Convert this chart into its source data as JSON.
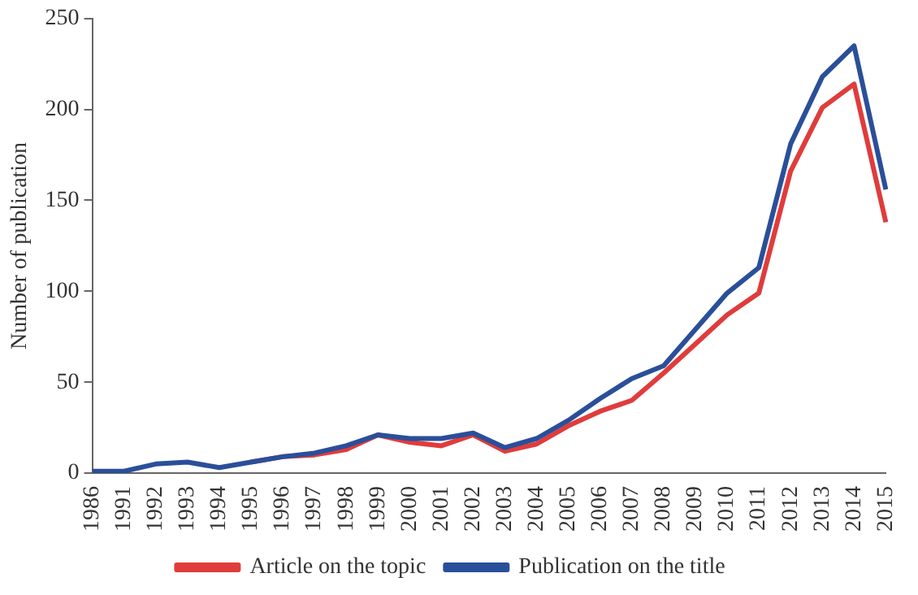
{
  "chart_data": {
    "type": "line",
    "ylabel": "Number of publication",
    "categories": [
      "1986",
      "1991",
      "1992",
      "1993",
      "1994",
      "1995",
      "1996",
      "1997",
      "1998",
      "1999",
      "2000",
      "2001",
      "2002",
      "2003",
      "2004",
      "2005",
      "2006",
      "2007",
      "2008",
      "2009",
      "2010",
      "2011",
      "2012",
      "2013",
      "2014",
      "2015"
    ],
    "series": [
      {
        "name": "Article on the topic",
        "color": "#e03c3c",
        "values": [
          null,
          null,
          null,
          null,
          null,
          6,
          9,
          10,
          13,
          21,
          17,
          15,
          21,
          12,
          16,
          26,
          34,
          40,
          55,
          71,
          87,
          99,
          166,
          201,
          214,
          138
        ]
      },
      {
        "name": "Publication on the title",
        "color": "#2a4f9a",
        "values": [
          1,
          1,
          5,
          6,
          3,
          6,
          9,
          11,
          15,
          21,
          19,
          19,
          22,
          14,
          19,
          29,
          41,
          52,
          59,
          79,
          99,
          113,
          181,
          218,
          235,
          156
        ]
      }
    ],
    "ylim": [
      0,
      250
    ],
    "yticks": [
      0,
      50,
      100,
      150,
      200,
      250
    ],
    "grid": false,
    "legend": "bottom",
    "marker": "none",
    "line_style": "solid"
  }
}
